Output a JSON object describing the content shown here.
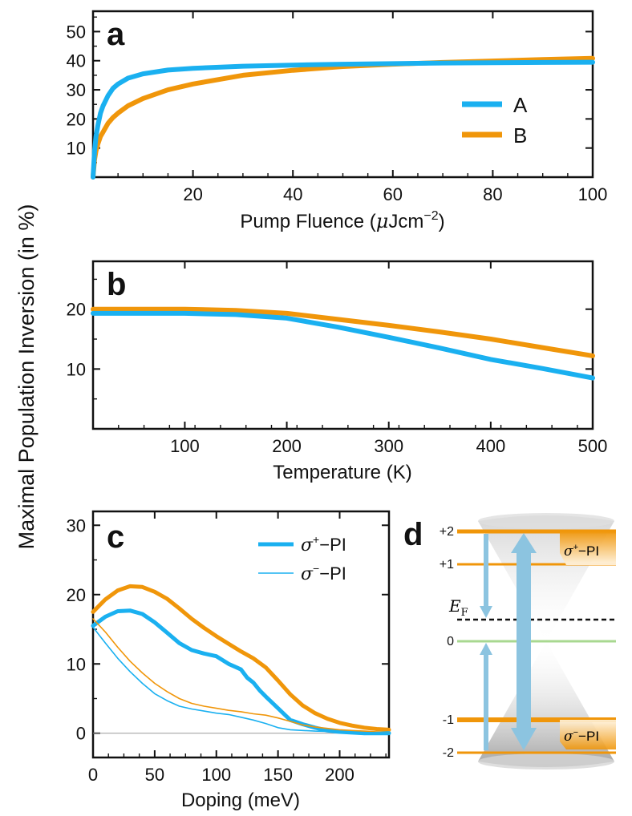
{
  "figure": {
    "ylabel": "Maximal Population Inversion  (in %)"
  },
  "colors": {
    "A": "#1ab0f0",
    "B": "#f0960a",
    "zero_line": "#999999",
    "cone": "#bdbdbd",
    "arrow": "#8cc4e0",
    "fermi_zero": "#a8d890"
  },
  "chart_data": [
    {
      "id": "a",
      "type": "line",
      "letter": "a",
      "xlabel_main": "Pump Fluence (",
      "xlabel_mu": "μ",
      "xlabel_unit": "Jcm",
      "xlabel_sup": "−2",
      "xlabel_close": ")",
      "xlim": [
        0,
        100
      ],
      "ylim": [
        0,
        57
      ],
      "xticks": [
        20,
        40,
        60,
        80,
        100
      ],
      "yticks": [
        10,
        20,
        30,
        40,
        50
      ],
      "legend": [
        {
          "name": "A"
        },
        {
          "name": "B"
        }
      ],
      "series": [
        {
          "name": "A",
          "x": [
            0,
            0.3,
            0.6,
            1,
            1.5,
            2,
            3,
            4,
            5,
            7,
            10,
            15,
            20,
            30,
            40,
            50,
            60,
            70,
            80,
            90,
            100
          ],
          "y": [
            0,
            9,
            14,
            18,
            22,
            24.5,
            28,
            30.5,
            32,
            34,
            35.5,
            36.8,
            37.4,
            38.1,
            38.5,
            38.8,
            39,
            39.2,
            39.3,
            39.4,
            39.5
          ]
        },
        {
          "name": "B",
          "x": [
            0,
            0.3,
            0.6,
            1,
            1.5,
            2,
            3,
            4,
            5,
            7,
            10,
            15,
            20,
            30,
            40,
            50,
            60,
            70,
            80,
            90,
            100
          ],
          "y": [
            0,
            6,
            9,
            11.5,
            14,
            15.5,
            18.5,
            20.5,
            22,
            24.5,
            27,
            30,
            32,
            35,
            36.7,
            38,
            38.8,
            39.4,
            39.9,
            40.4,
            40.8
          ]
        }
      ]
    },
    {
      "id": "b",
      "type": "line",
      "letter": "b",
      "xlabel": "Temperature (K)",
      "xlim": [
        10,
        500
      ],
      "ylim": [
        0,
        28
      ],
      "xticks": [
        100,
        200,
        300,
        400,
        500
      ],
      "yticks": [
        10,
        20
      ],
      "series": [
        {
          "name": "A",
          "x": [
            10,
            50,
            100,
            150,
            200,
            250,
            300,
            350,
            400,
            450,
            500
          ],
          "y": [
            19.3,
            19.3,
            19.3,
            19.1,
            18.5,
            17,
            15.3,
            13.5,
            11.6,
            10.1,
            8.5
          ]
        },
        {
          "name": "B",
          "x": [
            10,
            50,
            100,
            150,
            200,
            250,
            300,
            350,
            400,
            450,
            500
          ],
          "y": [
            20,
            20,
            20,
            19.8,
            19.3,
            18.3,
            17.3,
            16.2,
            15,
            13.6,
            12.2
          ]
        }
      ]
    },
    {
      "id": "c",
      "type": "line",
      "letter": "c",
      "xlabel": "Doping (meV)",
      "xlim": [
        0,
        240
      ],
      "ylim": [
        -3.5,
        32
      ],
      "xticks": [
        0,
        50,
        100,
        150,
        200
      ],
      "yticks": [
        0,
        10,
        20,
        30
      ],
      "legend": [
        {
          "name": "σ⁺−PI",
          "sym": "σ",
          "sup": "+",
          "rest": "−PI",
          "weight": "thick"
        },
        {
          "name": "σ⁻−PI",
          "sym": "σ",
          "sup": "−",
          "rest": "−PI",
          "weight": "thin"
        }
      ],
      "series": [
        {
          "name": "B thick",
          "color": "B",
          "width": 5,
          "x": [
            0,
            10,
            20,
            30,
            40,
            50,
            60,
            70,
            80,
            90,
            100,
            110,
            120,
            130,
            140,
            150,
            160,
            170,
            180,
            190,
            200,
            210,
            220,
            230,
            240
          ],
          "y": [
            17.5,
            19.3,
            20.6,
            21.2,
            21.1,
            20.4,
            19.4,
            18,
            16.5,
            15.2,
            14,
            12.9,
            11.8,
            10.8,
            9.5,
            7.6,
            5.6,
            4,
            2.9,
            2.1,
            1.5,
            1.1,
            0.8,
            0.6,
            0.5
          ]
        },
        {
          "name": "A thick",
          "color": "A",
          "width": 5,
          "x": [
            0,
            10,
            20,
            30,
            40,
            50,
            60,
            70,
            80,
            90,
            100,
            110,
            115,
            120,
            125,
            130,
            135,
            140,
            150,
            160,
            170,
            180,
            190,
            200,
            210,
            220,
            240
          ],
          "y": [
            15.5,
            16.8,
            17.6,
            17.7,
            17.2,
            16,
            14.5,
            13,
            12,
            11.5,
            11.1,
            10,
            9.6,
            9.2,
            8,
            7.3,
            6.2,
            5.3,
            3.6,
            1.9,
            1.3,
            0.8,
            0.4,
            0.2,
            0.1,
            0,
            0
          ]
        },
        {
          "name": "B thin",
          "color": "B",
          "width": 1.6,
          "x": [
            0,
            10,
            20,
            30,
            40,
            50,
            60,
            70,
            80,
            90,
            100,
            110,
            120,
            130,
            140,
            150,
            160,
            170,
            180,
            190,
            200,
            210,
            220,
            230,
            240
          ],
          "y": [
            16.5,
            14.6,
            12.4,
            10.4,
            8.7,
            7.2,
            6,
            5,
            4.3,
            3.9,
            3.6,
            3.3,
            3.1,
            2.8,
            2.6,
            2.2,
            1.7,
            1.2,
            0.9,
            0.7,
            0.5,
            0.4,
            0.3,
            0.2,
            0.1
          ]
        },
        {
          "name": "A thin",
          "color": "A",
          "width": 1.6,
          "x": [
            0,
            10,
            20,
            30,
            40,
            50,
            60,
            70,
            80,
            90,
            100,
            110,
            120,
            130,
            140,
            150,
            160,
            170,
            180,
            200,
            220,
            240
          ],
          "y": [
            15.3,
            13,
            10.8,
            8.9,
            7.2,
            5.7,
            4.7,
            3.9,
            3.5,
            3.2,
            2.9,
            2.7,
            2.3,
            1.9,
            1.4,
            0.8,
            0.5,
            0.4,
            0.3,
            0.2,
            0.1,
            0.1
          ]
        }
      ]
    }
  ],
  "diagram_d": {
    "letter": "d",
    "levels": [
      "+2",
      "+1",
      "0",
      "-1",
      "-2"
    ],
    "fermi_label": "E",
    "fermi_sub": "F",
    "tag_top": {
      "sym": "σ",
      "sup": "+",
      "rest": "−PI"
    },
    "tag_bottom": {
      "sym": "σ",
      "sup": "−",
      "rest": "−PI"
    }
  }
}
